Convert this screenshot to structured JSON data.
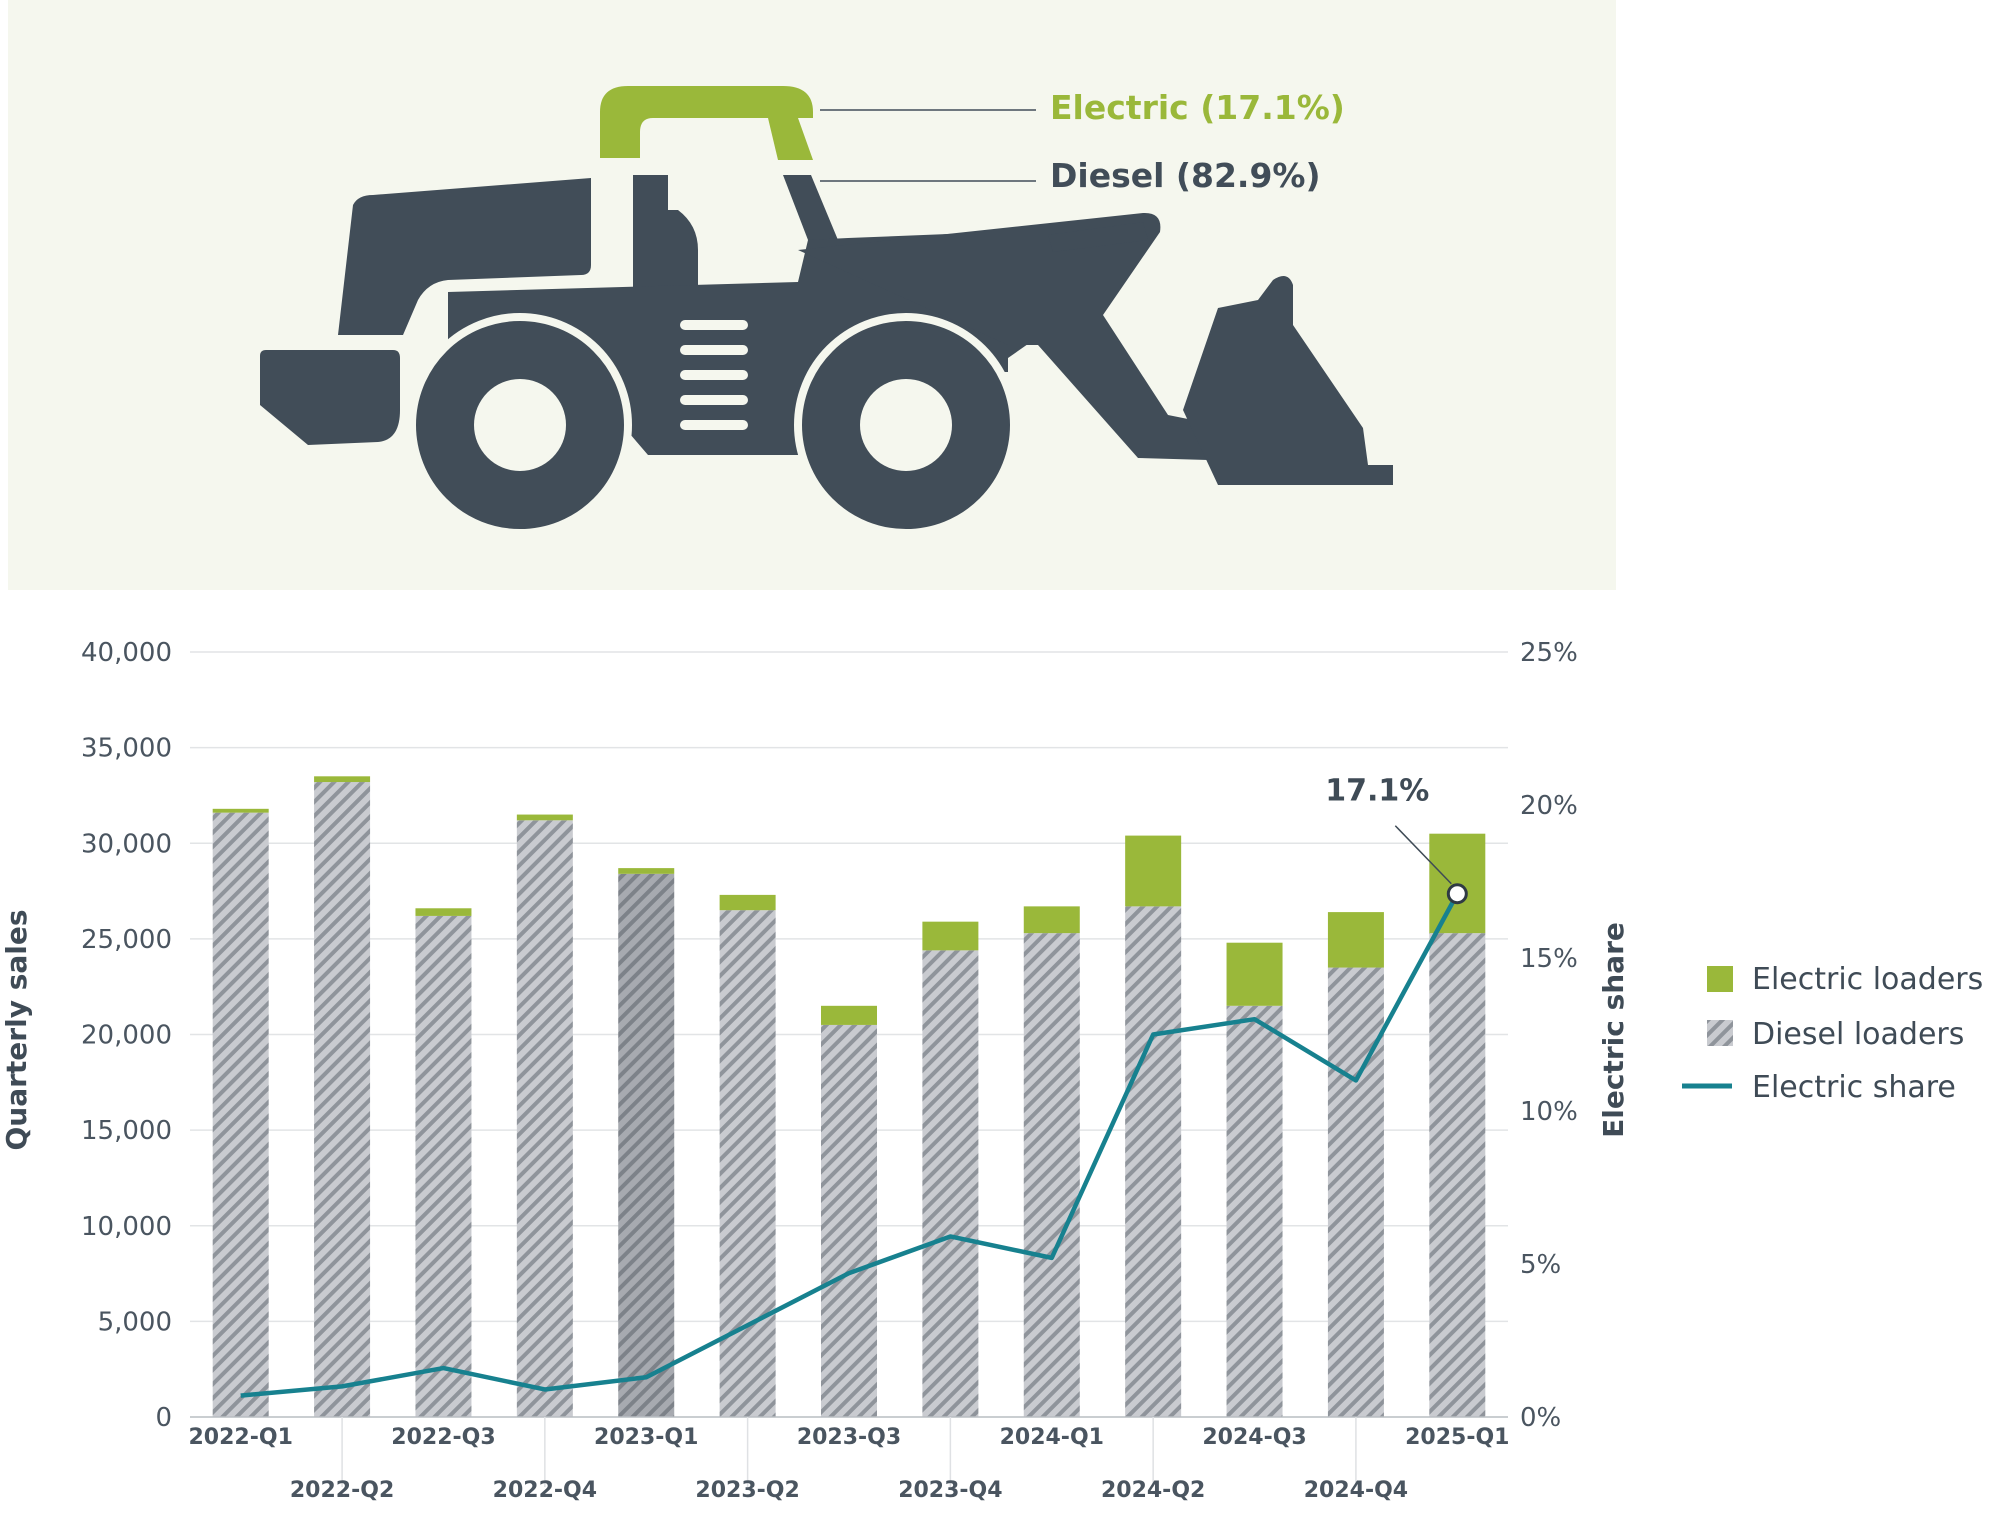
{
  "infographic": {
    "electric_label": "Electric (17.1%)",
    "diesel_label": "Diesel (82.9%)"
  },
  "colors": {
    "electric": "#9ab83a",
    "diesel_fill": "#c9cbd0",
    "diesel_hatch": "#8f949b",
    "share_line": "#17818f",
    "loader": "#414d58",
    "background": "#f5f7ee"
  },
  "chart_data": {
    "type": "bar",
    "stacked": true,
    "categories": [
      "2022-Q1",
      "2022-Q2",
      "2022-Q3",
      "2022-Q4",
      "2023-Q1",
      "2023-Q2",
      "2023-Q3",
      "2023-Q4",
      "2024-Q1",
      "2024-Q2",
      "2024-Q3",
      "2024-Q4",
      "2025-Q1"
    ],
    "series": [
      {
        "name": "Diesel loaders",
        "values": [
          31600,
          33200,
          26200,
          31200,
          28400,
          26500,
          20500,
          24400,
          25300,
          26700,
          21500,
          23500,
          25300
        ]
      },
      {
        "name": "Electric loaders",
        "values": [
          200,
          300,
          400,
          300,
          300,
          800,
          1000,
          1500,
          1400,
          3700,
          3300,
          2900,
          5200
        ]
      }
    ],
    "line_series": {
      "name": "Electric share",
      "axis": "right",
      "values": [
        0.7,
        1.0,
        1.6,
        0.9,
        1.3,
        3.0,
        4.7,
        5.9,
        5.2,
        12.5,
        13.0,
        11.0,
        17.1
      ]
    },
    "highlighted_category": "2023-Q1",
    "annotation": {
      "text": "17.1%",
      "category": "2025-Q1"
    },
    "y_left": {
      "label": "Quarterly sales",
      "ticks": [
        "0",
        "5,000",
        "10,000",
        "15,000",
        "20,000",
        "25,000",
        "30,000",
        "35,000",
        "40,000"
      ],
      "lim": [
        0,
        40000
      ]
    },
    "y_right": {
      "label": "Electric share",
      "ticks": [
        "0%",
        "5%",
        "10%",
        "15%",
        "20%",
        "25%"
      ],
      "lim": [
        0,
        25
      ]
    },
    "legend": {
      "position": "right",
      "entries": [
        "Electric loaders",
        "Diesel loaders",
        "Electric share"
      ]
    },
    "grid": true
  }
}
